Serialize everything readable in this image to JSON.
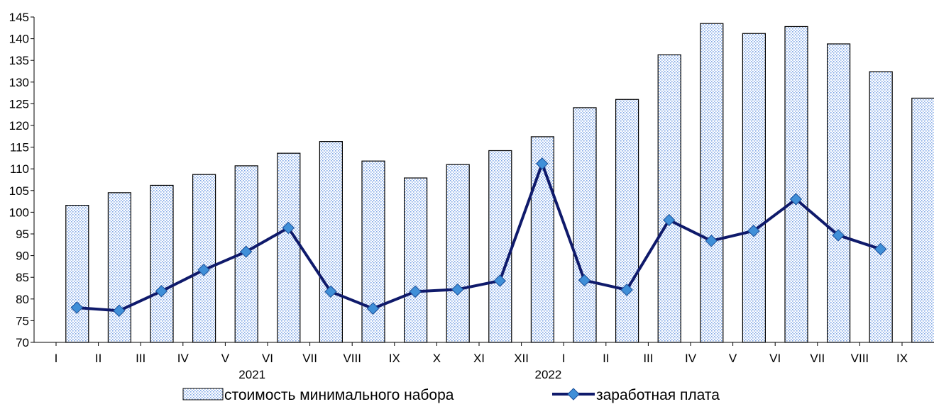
{
  "chart_data": {
    "type": "bar+line",
    "title": "",
    "xlabel": "",
    "ylabel": "",
    "ylim": [
      70,
      145
    ],
    "yticks": [
      70,
      75,
      80,
      85,
      90,
      95,
      100,
      105,
      110,
      115,
      120,
      125,
      130,
      135,
      140,
      145
    ],
    "categories": [
      "I",
      "II",
      "III",
      "IV",
      "V",
      "VI",
      "VII",
      "VIII",
      "IX",
      "X",
      "XI",
      "XII",
      "I",
      "II",
      "III",
      "IV",
      "V",
      "VI",
      "VII",
      "VIII",
      "IX"
    ],
    "year_labels": [
      {
        "label": "2021",
        "after_index": 5
      },
      {
        "label": "2022",
        "after_index": 12
      }
    ],
    "grid": false,
    "legend_position": "bottom",
    "series": [
      {
        "name": "стоимость минимального набора",
        "type": "bar",
        "fill": "dotted light blue",
        "color": "#6f9be0",
        "values": [
          101.6,
          104.5,
          106.2,
          108.7,
          110.7,
          113.6,
          116.3,
          111.8,
          107.9,
          111.0,
          114.2,
          117.4,
          124.1,
          126.0,
          136.3,
          143.5,
          141.2,
          142.8,
          138.8,
          132.4,
          126.3
        ]
      },
      {
        "name": "заработная плата",
        "type": "line",
        "color": "#0f1a6b",
        "marker_color": "#3f8fd8",
        "values": [
          78.0,
          77.3,
          81.8,
          86.7,
          90.9,
          96.4,
          81.7,
          77.8,
          81.7,
          82.2,
          84.2,
          111.2,
          84.3,
          82.1,
          98.2,
          93.4,
          95.7,
          103.0,
          94.7,
          91.5,
          null
        ]
      }
    ]
  }
}
